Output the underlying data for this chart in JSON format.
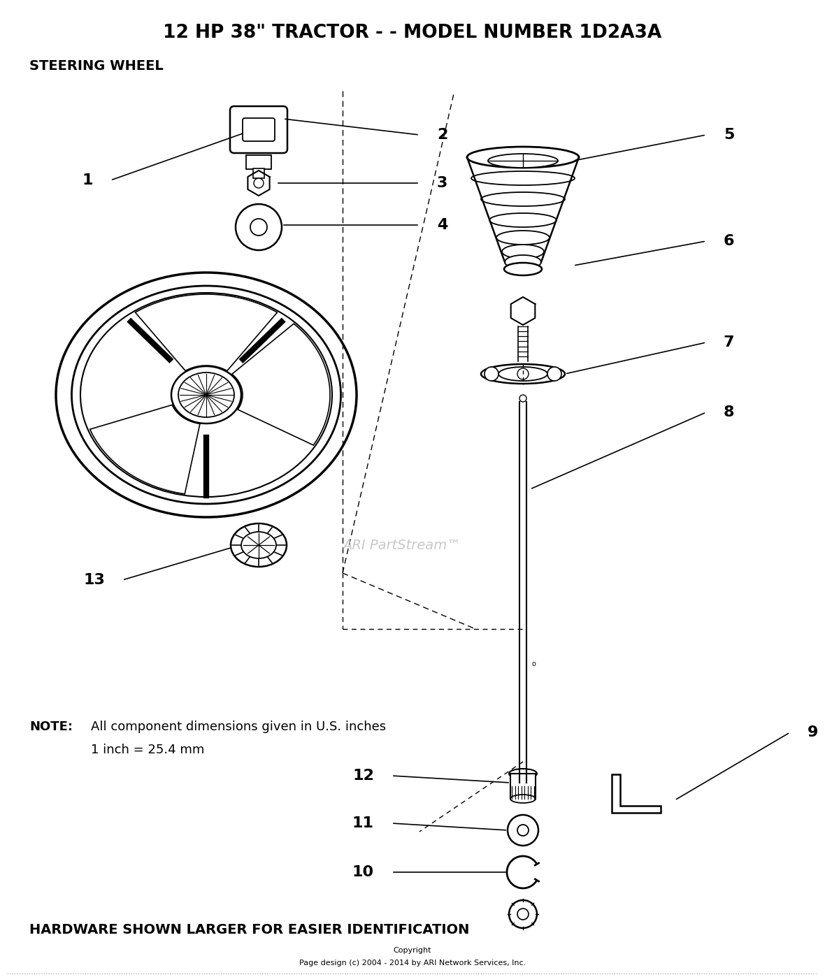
{
  "title": "12 HP 38\" TRACTOR - - MODEL NUMBER 1D2A3A",
  "subtitle": "STEERING WHEEL",
  "note_bold": "NOTE:",
  "note_text1": "All component dimensions given in U.S. inches",
  "note_text2": "1 inch = 25.4 mm",
  "footer1": "HARDWARE SHOWN LARGER FOR EASIER IDENTIFICATION",
  "footer2": "Copyright",
  "footer3": "Page design (c) 2004 - 2014 by ARI Network Services, Inc.",
  "watermark": "ARI PartStream™",
  "bg_color": "#ffffff",
  "fg_color": "#000000"
}
